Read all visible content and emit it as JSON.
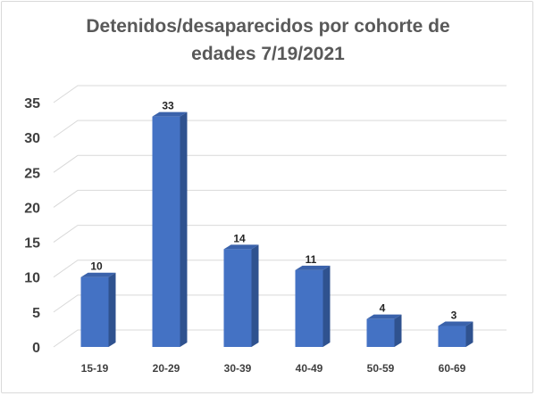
{
  "chart_data": {
    "type": "bar",
    "title": "Detenidos/desaparecidos por cohorte de\nedades 7/19/2021",
    "categories": [
      "15-19",
      "20-29",
      "30-39",
      "40-49",
      "50-59",
      "60-69"
    ],
    "values": [
      10,
      33,
      14,
      11,
      4,
      3
    ],
    "xlabel": "",
    "ylabel": "",
    "ylim": [
      0,
      35
    ],
    "yticks": [
      0,
      5,
      10,
      15,
      20,
      25,
      30,
      35
    ],
    "grid": true,
    "legend": "none",
    "style": "3d-column",
    "colors": {
      "bar_front": "#4472c4",
      "bar_side": "#2f528f",
      "bar_top": "#3a62ab",
      "grid": "#d9d9d9"
    }
  }
}
